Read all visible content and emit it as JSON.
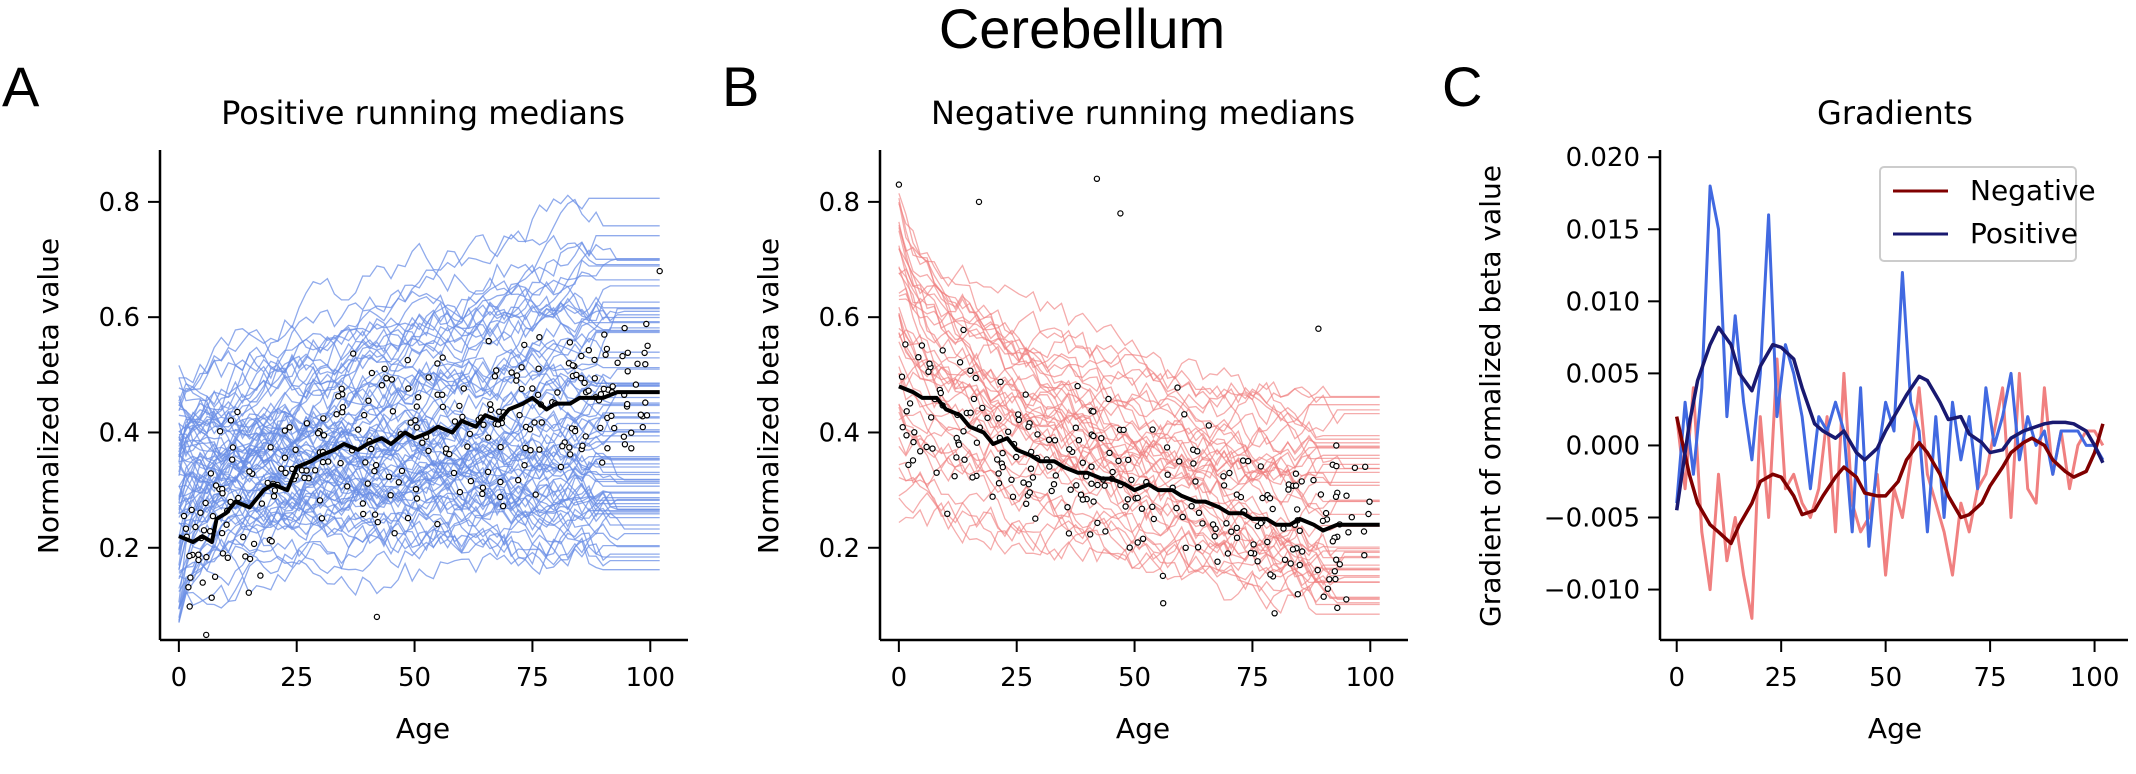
{
  "figure": {
    "title": "Cerebellum"
  },
  "chart_data": [
    {
      "type": "line",
      "panel_letter": "A",
      "title": "Positive running medians",
      "xlabel": "Age",
      "ylabel": "Normalized beta value",
      "xlim": [
        -4,
        108
      ],
      "ylim": [
        0.04,
        0.89
      ],
      "xticks": [
        0,
        25,
        50,
        75,
        100
      ],
      "xtick_labels": [
        "0",
        "25",
        "50",
        "75",
        "100"
      ],
      "yticks": [
        0.2,
        0.4,
        0.6,
        0.8
      ],
      "ytick_labels": [
        "0.2",
        "0.4",
        "0.6",
        "0.8"
      ],
      "grid": false,
      "background_color": "#6b8fe6",
      "median_color": "#000000",
      "scatter_color": "#ffffff",
      "median": {
        "x": [
          0,
          3,
          5,
          7,
          8,
          10,
          12,
          15,
          18,
          20,
          23,
          25,
          28,
          30,
          33,
          35,
          38,
          40,
          43,
          45,
          48,
          50,
          53,
          55,
          58,
          60,
          63,
          65,
          68,
          70,
          73,
          75,
          78,
          80,
          83,
          85,
          88,
          90,
          93,
          95,
          100,
          102
        ],
        "y": [
          0.22,
          0.21,
          0.22,
          0.21,
          0.25,
          0.26,
          0.28,
          0.27,
          0.3,
          0.31,
          0.3,
          0.34,
          0.35,
          0.36,
          0.37,
          0.38,
          0.37,
          0.38,
          0.39,
          0.38,
          0.4,
          0.39,
          0.4,
          0.41,
          0.4,
          0.42,
          0.41,
          0.43,
          0.42,
          0.44,
          0.45,
          0.46,
          0.44,
          0.45,
          0.45,
          0.46,
          0.46,
          0.46,
          0.47,
          0.47,
          0.47,
          0.47
        ]
      },
      "background_lines": {
        "count": 80,
        "start_range": [
          0.08,
          0.5
        ],
        "end_range": [
          0.17,
          0.82
        ],
        "extend_to": 102
      },
      "scatter": {
        "count": 260,
        "x_range": [
          0,
          100
        ],
        "outliers": [
          [
            42,
            0.08
          ],
          [
            102,
            0.68
          ]
        ]
      }
    },
    {
      "type": "line",
      "panel_letter": "B",
      "title": "Negative running medians",
      "xlabel": "Age",
      "ylabel": "Normalized beta value",
      "xlim": [
        -4,
        108
      ],
      "ylim": [
        0.04,
        0.89
      ],
      "xticks": [
        0,
        25,
        50,
        75,
        100
      ],
      "xtick_labels": [
        "0",
        "25",
        "50",
        "75",
        "100"
      ],
      "yticks": [
        0.2,
        0.4,
        0.6,
        0.8
      ],
      "ytick_labels": [
        "0.2",
        "0.4",
        "0.6",
        "0.8"
      ],
      "grid": false,
      "background_color": "#f08080",
      "median_color": "#000000",
      "scatter_color": "#ffffff",
      "median": {
        "x": [
          0,
          3,
          5,
          8,
          10,
          13,
          15,
          18,
          20,
          23,
          25,
          28,
          30,
          33,
          35,
          38,
          40,
          43,
          45,
          48,
          50,
          53,
          55,
          58,
          60,
          63,
          65,
          68,
          70,
          73,
          75,
          78,
          80,
          83,
          85,
          88,
          90,
          93,
          95,
          100,
          102
        ],
        "y": [
          0.48,
          0.47,
          0.46,
          0.46,
          0.44,
          0.43,
          0.41,
          0.4,
          0.38,
          0.39,
          0.37,
          0.36,
          0.35,
          0.35,
          0.34,
          0.33,
          0.33,
          0.32,
          0.32,
          0.31,
          0.3,
          0.31,
          0.3,
          0.3,
          0.29,
          0.28,
          0.28,
          0.27,
          0.26,
          0.26,
          0.25,
          0.25,
          0.24,
          0.24,
          0.25,
          0.24,
          0.23,
          0.24,
          0.24,
          0.24,
          0.24
        ]
      },
      "background_lines": {
        "count": 45,
        "start_range": [
          0.23,
          0.82
        ],
        "end_range": [
          0.09,
          0.45
        ],
        "extend_to": 102
      },
      "scatter": {
        "count": 240,
        "x_range": [
          0,
          100
        ],
        "outliers": [
          [
            0,
            0.83
          ],
          [
            17,
            0.8
          ],
          [
            42,
            0.84
          ],
          [
            47,
            0.78
          ],
          [
            89,
            0.58
          ]
        ]
      }
    },
    {
      "type": "line",
      "panel_letter": "C",
      "title": "Gradients",
      "xlabel": "Age",
      "ylabel": "Gradient of ormalized beta value",
      "xlim": [
        -4,
        108
      ],
      "ylim": [
        -0.0135,
        0.0205
      ],
      "xticks": [
        0,
        25,
        50,
        75,
        100
      ],
      "xtick_labels": [
        "0",
        "25",
        "50",
        "75",
        "100"
      ],
      "yticks": [
        -0.01,
        -0.005,
        0.0,
        0.005,
        0.01,
        0.015,
        0.02
      ],
      "ytick_labels": [
        "−0.010",
        "−0.005",
        "0.000",
        "0.005",
        "0.010",
        "0.015",
        "0.020"
      ],
      "grid": false,
      "legend_position": "top-right",
      "series": [
        {
          "name": "",
          "color": "#f08080",
          "x": [
            0,
            2,
            4,
            6,
            8,
            10,
            12,
            14,
            16,
            18,
            20,
            22,
            24,
            26,
            28,
            30,
            32,
            34,
            36,
            38,
            40,
            42,
            44,
            46,
            48,
            50,
            52,
            54,
            56,
            58,
            60,
            62,
            64,
            66,
            68,
            70,
            72,
            74,
            76,
            78,
            80,
            82,
            84,
            86,
            88,
            90,
            92,
            94,
            96,
            98,
            100,
            102
          ],
          "y": [
            0.002,
            -0.003,
            0.004,
            -0.006,
            -0.01,
            -0.002,
            -0.008,
            -0.005,
            -0.009,
            -0.012,
            0.002,
            -0.005,
            0.006,
            -0.003,
            -0.002,
            -0.004,
            -0.005,
            -0.003,
            0.002,
            -0.006,
            0.005,
            -0.004,
            -0.006,
            -0.005,
            -0.002,
            -0.009,
            -0.003,
            -0.005,
            -0.001,
            0.004,
            -0.002,
            -0.004,
            -0.006,
            -0.009,
            -0.004,
            -0.006,
            -0.003,
            -0.002,
            0.001,
            0.004,
            -0.005,
            0.005,
            -0.003,
            -0.004,
            0.004,
            -0.002,
            0.001,
            -0.003,
            0.0,
            0.001,
            0.001,
            0.0
          ]
        },
        {
          "name": "",
          "color": "#4169e1",
          "x": [
            0,
            2,
            4,
            6,
            8,
            10,
            12,
            14,
            16,
            18,
            20,
            22,
            24,
            26,
            28,
            30,
            32,
            34,
            36,
            38,
            40,
            42,
            44,
            46,
            48,
            50,
            52,
            54,
            56,
            58,
            60,
            62,
            64,
            66,
            68,
            70,
            72,
            74,
            76,
            78,
            80,
            82,
            84,
            86,
            88,
            90,
            92,
            94,
            96,
            98,
            100,
            102
          ],
          "y": [
            -0.004,
            0.003,
            -0.002,
            0.004,
            0.018,
            0.015,
            0.002,
            0.009,
            0.003,
            -0.001,
            0.005,
            0.016,
            0.002,
            0.007,
            0.005,
            0.002,
            -0.003,
            0.002,
            0.001,
            0.003,
            0.001,
            -0.006,
            0.004,
            -0.007,
            -0.001,
            0.003,
            0.001,
            0.012,
            0.003,
            0.001,
            -0.006,
            0.002,
            -0.005,
            0.003,
            -0.001,
            0.002,
            -0.003,
            0.004,
            0.0,
            0.002,
            0.005,
            -0.001,
            0.002,
            0.0,
            0.001,
            -0.002,
            0.001,
            0.001,
            0.001,
            0.0,
            0.0,
            -0.001
          ]
        },
        {
          "name": "Negative",
          "color": "#800000",
          "x": [
            0,
            3,
            5,
            8,
            10,
            13,
            15,
            18,
            20,
            23,
            25,
            28,
            30,
            33,
            35,
            38,
            40,
            43,
            45,
            48,
            50,
            53,
            55,
            58,
            60,
            63,
            65,
            68,
            70,
            73,
            75,
            78,
            80,
            83,
            85,
            88,
            90,
            93,
            95,
            98,
            100,
            102
          ],
          "y": [
            0.002,
            -0.002,
            -0.004,
            -0.0055,
            -0.006,
            -0.0068,
            -0.0055,
            -0.004,
            -0.0025,
            -0.002,
            -0.0022,
            -0.0035,
            -0.0048,
            -0.0045,
            -0.0035,
            -0.0022,
            -0.0015,
            -0.0022,
            -0.0033,
            -0.0035,
            -0.0035,
            -0.0025,
            -0.001,
            0.0002,
            -0.0005,
            -0.002,
            -0.0035,
            -0.005,
            -0.0048,
            -0.004,
            -0.0028,
            -0.0015,
            -0.0005,
            0.0002,
            0.0005,
            0.0,
            -0.001,
            -0.0018,
            -0.0022,
            -0.0018,
            -0.0005,
            0.0015
          ]
        },
        {
          "name": "Positive",
          "color": "#191970",
          "x": [
            0,
            3,
            5,
            8,
            10,
            13,
            15,
            18,
            20,
            23,
            25,
            28,
            30,
            33,
            35,
            38,
            40,
            43,
            45,
            48,
            50,
            53,
            55,
            58,
            60,
            63,
            65,
            68,
            70,
            73,
            75,
            78,
            80,
            83,
            85,
            88,
            90,
            93,
            95,
            98,
            100,
            102
          ],
          "y": [
            -0.0045,
            0.0015,
            0.0045,
            0.007,
            0.0082,
            0.007,
            0.005,
            0.0038,
            0.0055,
            0.007,
            0.0068,
            0.006,
            0.004,
            0.0015,
            0.001,
            0.0005,
            0.001,
            -0.0005,
            -0.001,
            -0.0002,
            0.001,
            0.0025,
            0.0035,
            0.0048,
            0.0045,
            0.003,
            0.0018,
            0.002,
            0.0008,
            0.0002,
            -0.0005,
            -0.0003,
            0.0005,
            0.001,
            0.0012,
            0.0015,
            0.0016,
            0.0016,
            0.0015,
            0.001,
            0.0,
            -0.0012
          ]
        }
      ]
    }
  ]
}
